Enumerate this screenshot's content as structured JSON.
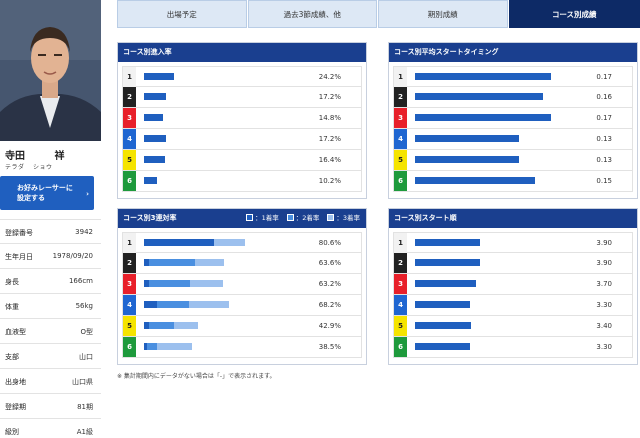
{
  "racer": {
    "name_family": "寺田",
    "name_given": "祥",
    "kana_family": "テラダ",
    "kana_given": "ショウ",
    "fav_button_line1": "お好みレーサーに",
    "fav_button_line2": "設定する",
    "profile": [
      {
        "label": "登録番号",
        "value": "3942"
      },
      {
        "label": "生年月日",
        "value": "1978/09/20"
      },
      {
        "label": "身長",
        "value": "166cm"
      },
      {
        "label": "体重",
        "value": "56kg"
      },
      {
        "label": "血液型",
        "value": "O型"
      },
      {
        "label": "支部",
        "value": "山口"
      },
      {
        "label": "出身地",
        "value": "山口県"
      },
      {
        "label": "登録期",
        "value": "81期"
      },
      {
        "label": "級別",
        "value": "A1級"
      }
    ]
  },
  "tabs": [
    {
      "label": "出場予定",
      "active": false
    },
    {
      "label": "過去3節成績、他",
      "active": false
    },
    {
      "label": "期別成績",
      "active": false
    },
    {
      "label": "コース別成績",
      "active": true
    }
  ],
  "lane_colors": [
    {
      "bg": "#f2f2f2",
      "fg": "#222222"
    },
    {
      "bg": "#222222",
      "fg": "#ffffff"
    },
    {
      "bg": "#e8202a",
      "fg": "#ffffff"
    },
    {
      "bg": "#1f66d1",
      "fg": "#ffffff"
    },
    {
      "bg": "#f5e400",
      "fg": "#222222"
    },
    {
      "bg": "#1e9a3c",
      "fg": "#ffffff"
    }
  ],
  "panels": {
    "entry_rate": {
      "title": "コース別進入率",
      "courses": [
        "1",
        "2",
        "3",
        "4",
        "5",
        "6"
      ],
      "values": [
        24.2,
        17.2,
        14.8,
        17.2,
        16.4,
        10.2
      ],
      "labels": [
        "24.2%",
        "17.2%",
        "14.8%",
        "17.2%",
        "16.4%",
        "10.2%"
      ]
    },
    "start_timing": {
      "title": "コース別平均スタートタイミング",
      "courses": [
        "1",
        "2",
        "3",
        "4",
        "5",
        "6"
      ],
      "values": [
        0.17,
        0.16,
        0.17,
        0.13,
        0.13,
        0.15
      ],
      "labels": [
        "0.17",
        "0.16",
        "0.17",
        "0.13",
        "0.13",
        "0.15"
      ]
    },
    "top3_rate": {
      "title": "コース別3連対率",
      "legend": [
        "：1着率",
        "：2着率",
        "：3着率"
      ],
      "legend_colors": [
        "#1f5fbf",
        "#4a8fe0",
        "#9cc0ee"
      ],
      "courses": [
        "1",
        "2",
        "3",
        "4",
        "5",
        "6"
      ],
      "segments": [
        [
          56.0,
          0.0,
          24.6
        ],
        [
          4.0,
          37.0,
          22.6
        ],
        [
          4.0,
          33.0,
          26.2
        ],
        [
          10.0,
          26.0,
          32.2
        ],
        [
          4.0,
          20.0,
          18.9
        ],
        [
          2.0,
          8.0,
          28.5
        ]
      ],
      "labels": [
        "80.6%",
        "63.6%",
        "63.2%",
        "68.2%",
        "42.9%",
        "38.5%"
      ]
    },
    "start_order": {
      "title": "コース別スタート順",
      "courses": [
        "1",
        "2",
        "3",
        "4",
        "5",
        "6"
      ],
      "values": [
        3.9,
        3.9,
        3.7,
        3.3,
        3.4,
        3.3
      ],
      "labels": [
        "3.90",
        "3.90",
        "3.70",
        "3.30",
        "3.40",
        "3.30"
      ]
    }
  },
  "footnote": "※ 集計期間内にデータがない場合は「-」で表示されます。"
}
